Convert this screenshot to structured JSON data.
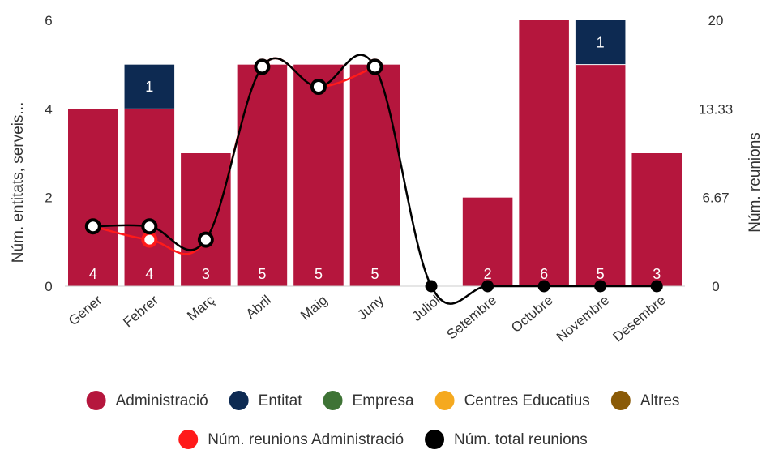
{
  "chart_data": {
    "type": "bar",
    "stacked": true,
    "categories": [
      "Gener",
      "Febrer",
      "Març",
      "Abril",
      "Maig",
      "Juny",
      "Juliol",
      "Setembre",
      "Octubre",
      "Novembre",
      "Desembre"
    ],
    "y_left": {
      "label": "Núm. entitats, serveis...",
      "range": [
        0,
        6
      ],
      "ticks": [
        "0",
        "2",
        "4",
        "6"
      ]
    },
    "y_right": {
      "label": "Núm. reunions",
      "range": [
        0,
        20
      ],
      "ticks": [
        "0",
        "6.67",
        "13.33",
        "20"
      ]
    },
    "series": [
      {
        "name": "Administració",
        "kind": "bar",
        "color": "#B5163D",
        "values": [
          4,
          4,
          3,
          5,
          5,
          5,
          0,
          2,
          6,
          5,
          3
        ]
      },
      {
        "name": "Entitat",
        "kind": "bar",
        "color": "#0D2A52",
        "values": [
          0,
          1,
          0,
          0,
          0,
          0,
          0,
          0,
          0,
          1,
          0
        ]
      },
      {
        "name": "Empresa",
        "kind": "bar",
        "color": "#3E7335",
        "values": [
          0,
          0,
          0,
          0,
          0,
          0,
          0,
          0,
          0,
          0,
          0
        ]
      },
      {
        "name": "Centres Educatius",
        "kind": "bar",
        "color": "#F5A91F",
        "values": [
          0,
          0,
          0,
          0,
          0,
          0,
          0,
          0,
          0,
          0,
          0
        ]
      },
      {
        "name": "Altres",
        "kind": "bar",
        "color": "#8A5A07",
        "values": [
          0,
          0,
          0,
          0,
          0,
          0,
          0,
          0,
          0,
          0,
          0
        ]
      },
      {
        "name": "Núm. reunions Administració",
        "kind": "line",
        "axis": "right",
        "color": "#FF1A1A",
        "values": [
          4.5,
          3.5,
          3.5,
          16.5,
          15,
          16.5,
          null,
          null,
          null,
          null,
          null
        ]
      },
      {
        "name": "Núm. total reunions",
        "kind": "line",
        "axis": "right",
        "color": "#000000",
        "values": [
          4.5,
          4.5,
          3.5,
          16.5,
          15,
          16.5,
          0,
          0,
          0,
          0,
          0
        ]
      }
    ],
    "bar_labels": [
      {
        "category": "Gener",
        "series": "Administració",
        "text": "4"
      },
      {
        "category": "Febrer",
        "series": "Administració",
        "text": "4"
      },
      {
        "category": "Febrer",
        "series": "Entitat",
        "text": "1"
      },
      {
        "category": "Març",
        "series": "Administració",
        "text": "3"
      },
      {
        "category": "Abril",
        "series": "Administració",
        "text": "5"
      },
      {
        "category": "Maig",
        "series": "Administració",
        "text": "5"
      },
      {
        "category": "Juny",
        "series": "Administració",
        "text": "5"
      },
      {
        "category": "Setembre",
        "series": "Administració",
        "text": "2"
      },
      {
        "category": "Octubre",
        "series": "Administració",
        "text": "6"
      },
      {
        "category": "Novembre",
        "series": "Administració",
        "text": "5"
      },
      {
        "category": "Novembre",
        "series": "Entitat",
        "text": "1"
      },
      {
        "category": "Desembre",
        "series": "Administració",
        "text": "3"
      }
    ],
    "legend": {
      "position": "bottom",
      "rows": [
        [
          "Administració",
          "Entitat",
          "Empresa",
          "Centres Educatius",
          "Altres"
        ],
        [
          "Núm. reunions Administració",
          "Núm. total reunions"
        ]
      ]
    },
    "grid": false
  }
}
